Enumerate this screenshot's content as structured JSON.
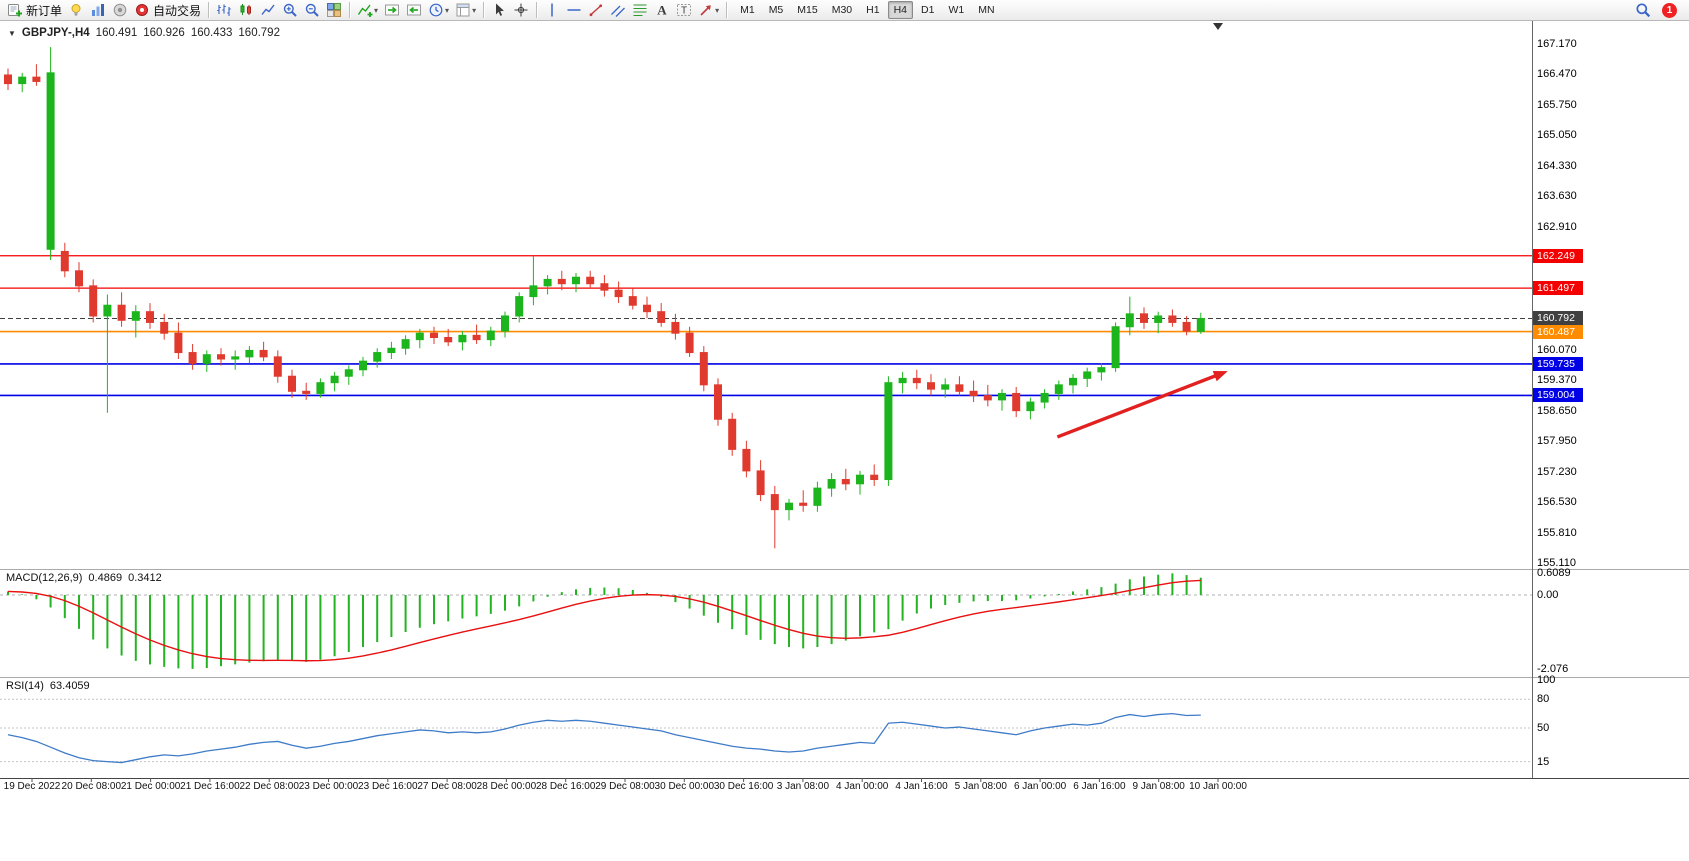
{
  "toolbar": {
    "groups": [
      {
        "items": [
          {
            "name": "new-order",
            "icon": "neworder",
            "label": "新订单"
          },
          {
            "name": "ideas",
            "icon": "lightbulb"
          },
          {
            "name": "market-depth",
            "icon": "barchart"
          },
          {
            "name": "sounds",
            "icon": "speaker"
          },
          {
            "name": "auto-trading",
            "icon": "autotrade",
            "label": "自动交易"
          }
        ]
      },
      {
        "items": [
          {
            "name": "bar-chart-mode",
            "icon": "bars"
          },
          {
            "name": "candlestick-mode",
            "icon": "candles"
          },
          {
            "name": "line-chart-mode",
            "icon": "linechart"
          },
          {
            "name": "zoom-in",
            "icon": "zoomin"
          },
          {
            "name": "zoom-out",
            "icon": "zoomout"
          },
          {
            "name": "tile-windows",
            "icon": "tiles"
          }
        ]
      },
      {
        "items": [
          {
            "name": "indicators",
            "icon": "indicators",
            "caret": true
          },
          {
            "name": "auto-scroll",
            "icon": "autoscroll"
          },
          {
            "name": "chart-shift",
            "icon": "chartshift"
          },
          {
            "name": "periods",
            "icon": "periods",
            "caret": true
          },
          {
            "name": "templates",
            "icon": "templates",
            "caret": true
          }
        ]
      },
      {
        "items": [
          {
            "name": "cursor",
            "icon": "cursor"
          },
          {
            "name": "crosshair",
            "icon": "crosshair"
          }
        ]
      },
      {
        "items": [
          {
            "name": "vertical-line-tool",
            "icon": "vline"
          },
          {
            "name": "horizontal-line-tool",
            "icon": "hline"
          },
          {
            "name": "trendline-tool",
            "icon": "trendline"
          },
          {
            "name": "channel-tool",
            "icon": "channel"
          },
          {
            "name": "fibonacci-tool",
            "icon": "fibo"
          },
          {
            "name": "text-tool",
            "icon": "textA"
          },
          {
            "name": "label-tool",
            "icon": "textT"
          },
          {
            "name": "shapes-tool",
            "icon": "arrowshape",
            "caret": true
          }
        ]
      }
    ],
    "timeframes": [
      "M1",
      "M5",
      "M15",
      "M30",
      "H1",
      "H4",
      "D1",
      "W1",
      "MN"
    ],
    "active_timeframe": "H4",
    "notification_count": "1"
  },
  "chart": {
    "title": {
      "symbol": "GBPJPY-,H4",
      "open": "160.491",
      "high": "160.926",
      "low": "160.433",
      "close": "160.792"
    }
  },
  "indicators": {
    "macd": {
      "name": "MACD(12,26,9)",
      "main": "0.4869",
      "signal": "0.3412"
    },
    "rsi": {
      "name": "RSI(14)",
      "value": "63.4059"
    }
  },
  "colors": {
    "bull": "#1DB51D",
    "bear": "#E03A2E",
    "macd_hist": "#23B323",
    "macd_signal": "#E81010",
    "rsi_line": "#3E7BC8",
    "line_red": "#F40000",
    "line_orange": "#FF8C00",
    "line_blue": "#0000E6",
    "current_price_bg": "#404040",
    "arrow": "#E32020"
  },
  "chart_data": [
    {
      "type": "candlestick",
      "symbol": "GBPJPY-",
      "timeframe": "H4",
      "ylim": [
        155.11,
        167.17
      ],
      "y_tic# ks_note": "visible plain axis ticks",
      "y_ticks": [
        "167.170",
        "166.470",
        "165.750",
        "165.050",
        "164.330",
        "163.630",
        "162.910",
        "160.070",
        "159.370",
        "158.650",
        "157.950",
        "157.230",
        "156.530",
        "155.810",
        "155.110"
      ],
      "x_labels": [
        "19 Dec 2022",
        "20 Dec 08:00",
        "21 Dec 00:00",
        "21 Dec 16:00",
        "22 Dec 08:00",
        "23 Dec 00:00",
        "23 Dec 16:00",
        "27 Dec 08:00",
        "28 Dec 00:00",
        "28 Dec 16:00",
        "29 Dec 08:00",
        "30 Dec 00:00",
        "30 Dec 16:00",
        "3 Jan 08:00",
        "4 Jan 00:00",
        "4 Jan 16:00",
        "5 Jan 08:00",
        "6 Jan 00:00",
        "6 Jan 16:00",
        "9 Jan 08:00",
        "10 Jan 00:00"
      ],
      "hlines": [
        {
          "name": "resistance-line-1",
          "label": "162.249",
          "price": 162.249,
          "color": "#F40000",
          "width": 1.3
        },
        {
          "name": "resistance-line-2",
          "label": "161.497",
          "price": 161.497,
          "color": "#F40000",
          "width": 1.3
        },
        {
          "name": "current-price-line",
          "label": "160.792",
          "price": 160.792,
          "color": "#404040",
          "width": 1,
          "dashed": true
        },
        {
          "name": "pivot-line-orange",
          "label": "160.487",
          "price": 160.487,
          "color": "#FF8C00",
          "width": 1.6
        },
        {
          "name": "support-line-1",
          "label": "159.735",
          "price": 159.735,
          "color": "#0000E6",
          "width": 1.6
        },
        {
          "name": "support-line-2",
          "label": "159.004",
          "price": 159.004,
          "color": "#0000E6",
          "width": 1.6
        }
      ],
      "arrow": {
        "from_bar": 73.9,
        "from_price": 158.04,
        "to_bar": 85.9,
        "to_price": 159.57
      },
      "candles": [
        [
          166.45,
          166.6,
          166.1,
          166.25
        ],
        [
          166.25,
          166.5,
          166.05,
          166.4
        ],
        [
          166.4,
          166.7,
          166.2,
          166.3
        ],
        [
          162.4,
          167.1,
          162.15,
          166.5
        ],
        [
          162.35,
          162.55,
          161.75,
          161.9
        ],
        [
          161.9,
          162.1,
          161.4,
          161.55
        ],
        [
          161.55,
          161.7,
          160.7,
          160.85
        ],
        [
          160.85,
          161.35,
          158.6,
          161.1
        ],
        [
          161.1,
          161.4,
          160.6,
          160.75
        ],
        [
          160.75,
          161.1,
          160.35,
          160.95
        ],
        [
          160.95,
          161.15,
          160.55,
          160.7
        ],
        [
          160.7,
          160.9,
          160.3,
          160.45
        ],
        [
          160.45,
          160.7,
          159.85,
          160.0
        ],
        [
          160.0,
          160.2,
          159.6,
          159.75
        ],
        [
          159.75,
          160.05,
          159.55,
          159.95
        ],
        [
          159.95,
          160.1,
          159.7,
          159.85
        ],
        [
          159.85,
          160.05,
          159.6,
          159.9
        ],
        [
          159.9,
          160.15,
          159.75,
          160.05
        ],
        [
          160.05,
          160.25,
          159.8,
          159.9
        ],
        [
          159.9,
          160.05,
          159.3,
          159.45
        ],
        [
          159.45,
          159.6,
          158.95,
          159.1
        ],
        [
          159.1,
          159.3,
          158.9,
          159.05
        ],
        [
          159.05,
          159.4,
          158.95,
          159.3
        ],
        [
          159.3,
          159.55,
          159.1,
          159.45
        ],
        [
          159.45,
          159.7,
          159.25,
          159.6
        ],
        [
          159.6,
          159.9,
          159.45,
          159.8
        ],
        [
          159.8,
          160.1,
          159.65,
          160.0
        ],
        [
          160.0,
          160.25,
          159.85,
          160.1
        ],
        [
          160.1,
          160.4,
          159.95,
          160.3
        ],
        [
          160.3,
          160.55,
          160.1,
          160.45
        ],
        [
          160.45,
          160.6,
          160.2,
          160.35
        ],
        [
          160.35,
          160.55,
          160.15,
          160.25
        ],
        [
          160.25,
          160.5,
          160.05,
          160.4
        ],
        [
          160.4,
          160.65,
          160.2,
          160.3
        ],
        [
          160.3,
          160.6,
          160.15,
          160.5
        ],
        [
          160.5,
          160.95,
          160.35,
          160.85
        ],
        [
          160.85,
          161.4,
          160.7,
          161.3
        ],
        [
          161.3,
          162.25,
          161.1,
          161.55
        ],
        [
          161.55,
          161.8,
          161.35,
          161.7
        ],
        [
          161.7,
          161.9,
          161.45,
          161.6
        ],
        [
          161.6,
          161.85,
          161.4,
          161.75
        ],
        [
          161.75,
          161.9,
          161.5,
          161.6
        ],
        [
          161.6,
          161.8,
          161.3,
          161.45
        ],
        [
          161.45,
          161.65,
          161.15,
          161.3
        ],
        [
          161.3,
          161.5,
          161.0,
          161.1
        ],
        [
          161.1,
          161.3,
          160.8,
          160.95
        ],
        [
          160.95,
          161.15,
          160.6,
          160.7
        ],
        [
          160.7,
          160.9,
          160.3,
          160.45
        ],
        [
          160.45,
          160.6,
          159.9,
          160.0
        ],
        [
          160.0,
          160.15,
          159.1,
          159.25
        ],
        [
          159.25,
          159.4,
          158.3,
          158.45
        ],
        [
          158.45,
          158.6,
          157.6,
          157.75
        ],
        [
          157.75,
          157.95,
          157.1,
          157.25
        ],
        [
          157.25,
          157.5,
          156.55,
          156.7
        ],
        [
          156.7,
          156.9,
          155.45,
          156.35
        ],
        [
          156.35,
          156.6,
          156.1,
          156.5
        ],
        [
          156.5,
          156.8,
          156.3,
          156.45
        ],
        [
          156.45,
          157.0,
          156.3,
          156.85
        ],
        [
          156.85,
          157.2,
          156.65,
          157.05
        ],
        [
          157.05,
          157.3,
          156.8,
          156.95
        ],
        [
          156.95,
          157.25,
          156.7,
          157.15
        ],
        [
          157.15,
          157.4,
          156.9,
          157.05
        ],
        [
          157.05,
          159.45,
          156.9,
          159.3
        ],
        [
          159.3,
          159.55,
          159.05,
          159.4
        ],
        [
          159.4,
          159.6,
          159.15,
          159.3
        ],
        [
          159.3,
          159.5,
          159.0,
          159.15
        ],
        [
          159.15,
          159.4,
          158.95,
          159.25
        ],
        [
          159.25,
          159.45,
          159.0,
          159.1
        ],
        [
          159.1,
          159.35,
          158.85,
          159.0
        ],
        [
          159.0,
          159.25,
          158.75,
          158.9
        ],
        [
          158.9,
          159.15,
          158.65,
          159.05
        ],
        [
          159.05,
          159.2,
          158.5,
          158.65
        ],
        [
          158.65,
          158.95,
          158.45,
          158.85
        ],
        [
          158.85,
          159.15,
          158.7,
          159.05
        ],
        [
          159.05,
          159.35,
          158.9,
          159.25
        ],
        [
          159.25,
          159.5,
          159.05,
          159.4
        ],
        [
          159.4,
          159.65,
          159.2,
          159.55
        ],
        [
          159.55,
          159.75,
          159.35,
          159.65
        ],
        [
          159.65,
          160.7,
          159.55,
          160.6
        ],
        [
          160.6,
          161.3,
          160.4,
          160.9
        ],
        [
          160.9,
          161.05,
          160.55,
          160.7
        ],
        [
          160.7,
          160.95,
          160.45,
          160.85
        ],
        [
          160.85,
          161.0,
          160.6,
          160.7
        ],
        [
          160.7,
          160.85,
          160.4,
          160.5
        ],
        [
          160.491,
          160.926,
          160.433,
          160.792
        ]
      ]
    },
    {
      "type": "macd",
      "label": "MACD(12,26,9)",
      "main_value": 0.4869,
      "signal_value": 0.3412,
      "ylim": [
        -2.25,
        0.7
      ],
      "y_ticks": [
        "0.6089",
        "0.00",
        "-2.076"
      ],
      "histogram": [
        0.1,
        0.02,
        -0.12,
        -0.35,
        -0.65,
        -0.95,
        -1.25,
        -1.5,
        -1.7,
        -1.85,
        -1.95,
        -2.02,
        -2.06,
        -2.076,
        -2.05,
        -2.0,
        -1.95,
        -1.9,
        -1.86,
        -1.82,
        -1.85,
        -1.88,
        -1.82,
        -1.72,
        -1.6,
        -1.46,
        -1.32,
        -1.18,
        -1.04,
        -0.92,
        -0.82,
        -0.74,
        -0.66,
        -0.6,
        -0.53,
        -0.44,
        -0.32,
        -0.18,
        -0.05,
        0.08,
        0.16,
        0.2,
        0.21,
        0.19,
        0.14,
        0.06,
        -0.05,
        -0.2,
        -0.38,
        -0.58,
        -0.78,
        -0.96,
        -1.12,
        -1.26,
        -1.38,
        -1.46,
        -1.5,
        -1.46,
        -1.38,
        -1.28,
        -1.16,
        -1.05,
        -0.96,
        -0.72,
        -0.52,
        -0.38,
        -0.28,
        -0.22,
        -0.18,
        -0.17,
        -0.17,
        -0.15,
        -0.1,
        -0.04,
        0.03,
        0.1,
        0.16,
        0.22,
        0.32,
        0.44,
        0.52,
        0.57,
        0.6089,
        0.56,
        0.4869
      ]
    },
    {
      "type": "rsi",
      "label": "RSI(14)",
      "value": 63.4059,
      "ylim": [
        0,
        100
      ],
      "levels": [
        80,
        50,
        15
      ],
      "y_ticks": [
        "100",
        "80",
        "50",
        "15"
      ],
      "values": [
        43,
        40,
        36,
        30,
        24,
        19,
        16,
        15,
        14,
        17,
        20,
        22,
        21,
        23,
        26,
        28,
        30,
        33,
        35,
        36,
        32,
        29,
        31,
        34,
        36,
        39,
        42,
        44,
        46,
        48,
        47,
        45,
        46,
        45,
        46,
        49,
        53,
        56,
        58,
        57,
        58,
        57,
        55,
        53,
        51,
        49,
        47,
        43,
        40,
        37,
        34,
        31,
        29,
        28,
        26,
        25,
        26,
        29,
        31,
        33,
        35,
        34,
        55,
        56,
        54,
        52,
        50,
        51,
        49,
        47,
        45,
        43,
        47,
        50,
        52,
        54,
        53,
        55,
        61,
        64,
        62,
        64,
        65,
        63,
        63.4059
      ]
    }
  ]
}
